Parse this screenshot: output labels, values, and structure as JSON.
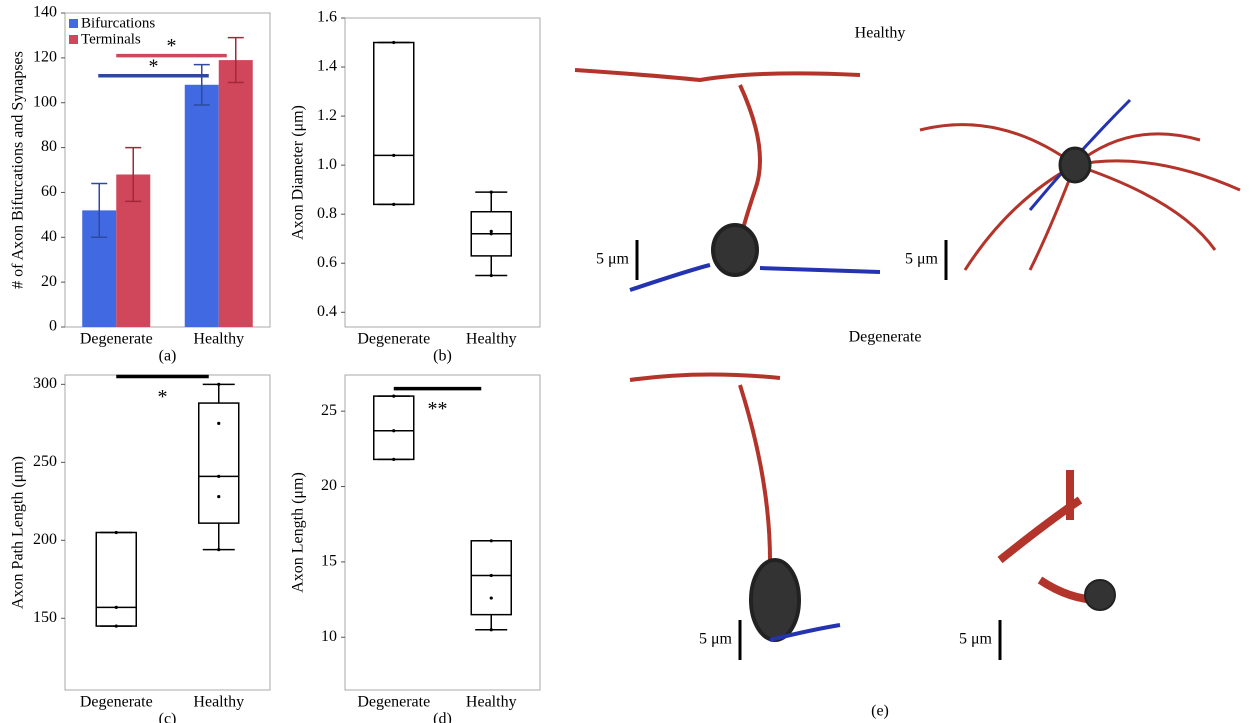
{
  "chart_data": [
    {
      "type": "bar",
      "caption": "(a)",
      "y_label": "# of Axon Bifurcations and Synapses",
      "categories": [
        "Degenerate",
        "Healthy"
      ],
      "series": [
        {
          "name": "Bifurcations",
          "color": "#4169e1",
          "values": [
            52,
            108
          ],
          "errors": [
            12,
            9
          ]
        },
        {
          "name": "Terminals",
          "color": "#d0465a",
          "values": [
            68,
            119
          ],
          "errors": [
            12,
            10
          ]
        }
      ],
      "ylim": [
        0,
        140
      ],
      "yticks": [
        0,
        20,
        40,
        60,
        80,
        100,
        120,
        140
      ],
      "legend": "top-left",
      "annotations": [
        {
          "text": "*",
          "y": 112,
          "color": "#2d4a9a"
        },
        {
          "text": "*",
          "y": 121,
          "color": "#d0465a"
        }
      ]
    },
    {
      "type": "box",
      "caption": "(b)",
      "y_label": "Axon Diameter (μm)",
      "categories": [
        "Degenerate",
        "Healthy"
      ],
      "boxes": [
        {
          "min": 0.84,
          "q1": 0.84,
          "median": 1.04,
          "q3": 1.5,
          "max": 1.5,
          "points": [
            0.84,
            1.04,
            1.5
          ]
        },
        {
          "min": 0.55,
          "q1": 0.63,
          "median": 0.72,
          "q3": 0.81,
          "max": 0.89,
          "points": [
            0.55,
            0.72,
            0.73,
            0.89
          ]
        }
      ],
      "ylim": [
        0.34,
        1.6
      ],
      "yticks": [
        0.4,
        0.6,
        0.8,
        {
          "value": 1.0,
          "label": "1.0"
        },
        1.2,
        1.4,
        1.6
      ],
      "annotations": []
    },
    {
      "type": "box",
      "caption": "(c)",
      "y_label": "Axon Path Length (μm)",
      "categories": [
        "Degenerate",
        "Healthy"
      ],
      "boxes": [
        {
          "min": 145,
          "q1": 145,
          "median": 157,
          "q3": 205,
          "max": 205,
          "points": [
            145,
            157,
            205
          ]
        },
        {
          "min": 194,
          "q1": 211,
          "median": 241,
          "q3": 288,
          "max": 300,
          "points": [
            194,
            228,
            241,
            275,
            300
          ]
        }
      ],
      "ylim": [
        104,
        306
      ],
      "yticks": [
        150,
        200,
        250,
        300
      ],
      "annotations": [
        {
          "text": "*",
          "y": 305,
          "color": "#000000"
        }
      ]
    },
    {
      "type": "box",
      "caption": "(d)",
      "y_label": "Axon Length (μm)",
      "categories": [
        "Degenerate",
        "Healthy"
      ],
      "boxes": [
        {
          "min": 21.8,
          "q1": 21.8,
          "median": 23.7,
          "q3": 26,
          "max": 26,
          "points": [
            21.8,
            23.7,
            26
          ]
        },
        {
          "min": 10.5,
          "q1": 11.5,
          "median": 14.1,
          "q3": 16.4,
          "max": 16.4,
          "points": [
            10.5,
            12.6,
            14.1,
            16.4
          ]
        }
      ],
      "ylim": [
        6.5,
        27.4
      ],
      "yticks": [
        10,
        15,
        20,
        25
      ],
      "annotations": [
        {
          "text": "**",
          "y": 26.5,
          "color": "#000000"
        }
      ]
    }
  ],
  "image_panel": {
    "caption": "(e)",
    "row_titles": [
      "Healthy",
      "Degenerate"
    ],
    "scale_bars": [
      "5 μm",
      "5 μm",
      "5 μm",
      "5 μm"
    ]
  }
}
